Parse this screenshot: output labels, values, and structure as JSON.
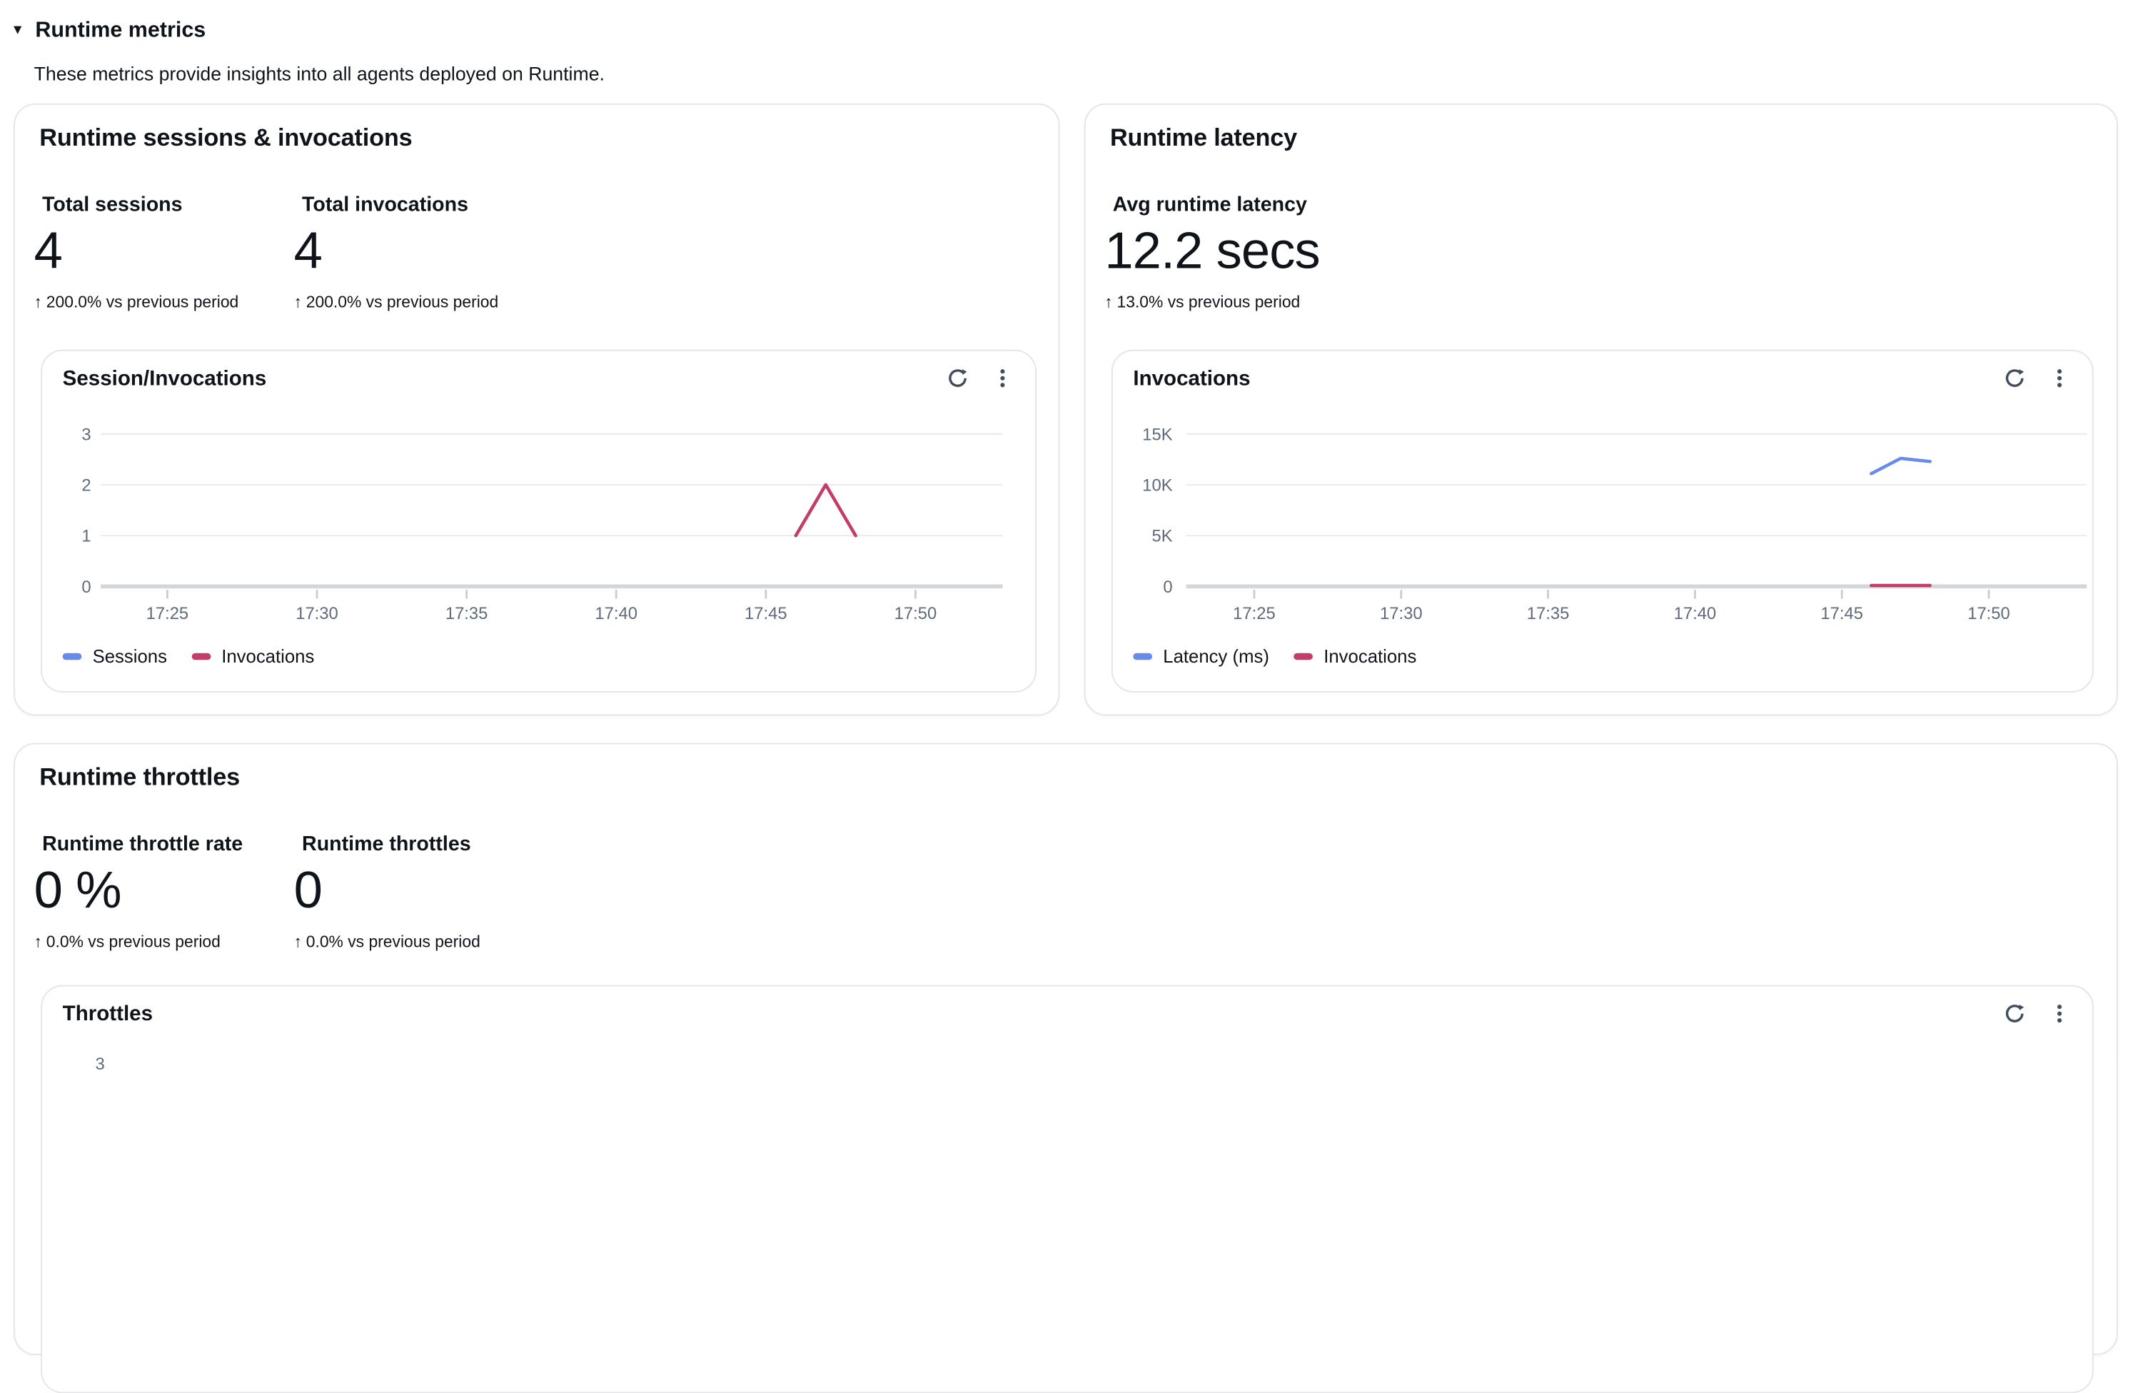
{
  "icons": {
    "caret_down": "▼",
    "up_arrow": "↑"
  },
  "colors": {
    "series_blue": "#688AE8",
    "series_red": "#C33D69",
    "icon": "#414d5c",
    "grid": "#e7eaee",
    "axis": "#d3d7dc",
    "tick_label": "#5f6b7a"
  },
  "section": {
    "title": "Runtime metrics",
    "description": "These metrics provide insights into all agents deployed on Runtime."
  },
  "cards": {
    "sessions": {
      "title": "Runtime sessions & invocations",
      "kpis": [
        {
          "label": "Total sessions",
          "value": "4",
          "delta": "200.0% vs previous period"
        },
        {
          "label": "Total invocations",
          "value": "4",
          "delta": "200.0% vs previous period"
        }
      ],
      "panel": {
        "title": "Session/Invocations"
      }
    },
    "latency": {
      "title": "Runtime latency",
      "kpis": [
        {
          "label": "Avg runtime latency",
          "value": "12.2 secs",
          "delta": "13.0% vs previous period"
        }
      ],
      "panel": {
        "title": "Invocations"
      }
    },
    "throttles": {
      "title": "Runtime throttles",
      "kpis": [
        {
          "label": "Runtime throttle rate",
          "value": "0 %",
          "delta": "0.0% vs previous period"
        },
        {
          "label": "Runtime throttles",
          "value": "0",
          "delta": "0.0% vs previous period"
        }
      ],
      "panel": {
        "title": "Throttles"
      }
    }
  },
  "chart_data": [
    {
      "id": "sessions_invocations",
      "type": "line",
      "title": "Session/Invocations",
      "x_unit": "minutes after 17:00",
      "x_axis": {
        "tick_labels": [
          "17:25",
          "17:30",
          "17:35",
          "17:40",
          "17:45",
          "17:50"
        ],
        "tick_values": [
          25,
          30,
          35,
          40,
          45,
          50
        ],
        "range": [
          22.8,
          53
        ]
      },
      "y_axis": {
        "tick_labels": [
          "3",
          "2",
          "1",
          "0"
        ],
        "tick_values": [
          3,
          2,
          1,
          0
        ],
        "range": [
          0,
          3
        ]
      },
      "legend": [
        "Sessions",
        "Invocations"
      ],
      "legend_position": "bottom",
      "grid": true,
      "series": [
        {
          "name": "Sessions",
          "color": "#688AE8",
          "points": []
        },
        {
          "name": "Invocations",
          "color": "#C33D69",
          "points": [
            [
              46,
              1
            ],
            [
              47,
              2
            ],
            [
              48,
              1
            ]
          ]
        }
      ]
    },
    {
      "id": "invocations",
      "type": "line",
      "title": "Invocations",
      "x_unit": "minutes after 17:00",
      "x_axis": {
        "tick_labels": [
          "17:25",
          "17:30",
          "17:35",
          "17:40",
          "17:45",
          "17:50"
        ],
        "tick_values": [
          25,
          30,
          35,
          40,
          45,
          50
        ],
        "range": [
          22.7,
          53.3
        ]
      },
      "y_axis": {
        "tick_labels": [
          "15K",
          "10K",
          "5K",
          "0"
        ],
        "tick_values": [
          15000,
          10000,
          5000,
          0
        ],
        "range": [
          0,
          15000
        ]
      },
      "legend": [
        "Latency (ms)",
        "Invocations"
      ],
      "legend_position": "bottom",
      "grid": true,
      "series": [
        {
          "name": "Latency (ms)",
          "color": "#688AE8",
          "points": [
            [
              46,
              11100
            ],
            [
              47,
              12600
            ],
            [
              48,
              12300
            ]
          ]
        },
        {
          "name": "Invocations",
          "color": "#C33D69",
          "points": [
            [
              46,
              100
            ],
            [
              47,
              100
            ],
            [
              48,
              100
            ]
          ]
        }
      ]
    },
    {
      "id": "throttles",
      "type": "line",
      "title": "Throttles",
      "cropped": true,
      "y_axis": {
        "tick_labels": [
          "3"
        ],
        "tick_values": [
          3
        ],
        "range": [
          0,
          3
        ]
      },
      "series": []
    }
  ]
}
